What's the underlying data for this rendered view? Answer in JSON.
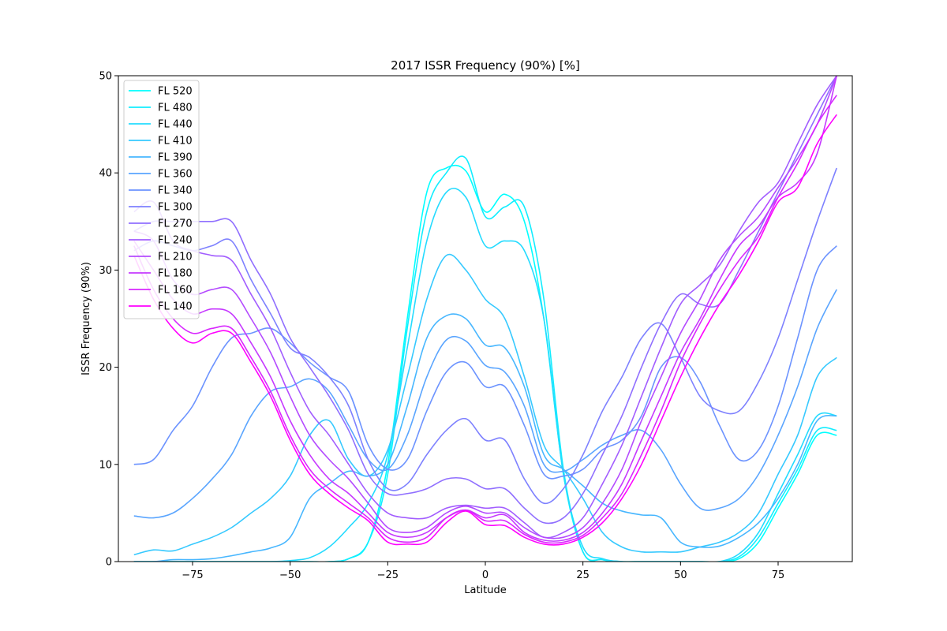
{
  "chart_data": {
    "type": "line",
    "title": "2017 ISSR Frequency (90%) [%]",
    "xlabel": "Latitude",
    "ylabel": "ISSR Frequency (90%)",
    "xlim": [
      -90,
      90
    ],
    "ylim": [
      0,
      50
    ],
    "xticks": [
      -75,
      -50,
      -25,
      0,
      25,
      50,
      75
    ],
    "xtick_labels": [
      "−75",
      "−50",
      "−25",
      "0",
      "25",
      "50",
      "75"
    ],
    "yticks": [
      0,
      10,
      20,
      30,
      40,
      50
    ],
    "ytick_labels": [
      "0",
      "10",
      "20",
      "30",
      "40",
      "50"
    ],
    "grid": false,
    "legend_position": "upper-left",
    "x": [
      -90,
      -85,
      -80,
      -75,
      -70,
      -65,
      -60,
      -55,
      -50,
      -45,
      -40,
      -35,
      -30,
      -25,
      -20,
      -15,
      -10,
      -5,
      0,
      5,
      10,
      15,
      20,
      25,
      30,
      35,
      40,
      45,
      50,
      55,
      60,
      65,
      70,
      75,
      80,
      85,
      90
    ],
    "series": [
      {
        "name": "FL 520",
        "color": "#00ffff",
        "values": [
          0,
          0,
          0,
          0,
          0,
          0,
          0,
          0,
          0,
          0,
          0,
          0.3,
          2,
          10,
          25,
          38,
          40.5,
          40.2,
          36,
          37.8,
          35,
          25,
          9,
          1,
          0.2,
          0,
          0,
          0,
          0,
          0,
          0,
          0.3,
          2,
          5.5,
          9,
          13,
          13
        ]
      },
      {
        "name": "FL 480",
        "color": "#12edff",
        "values": [
          0,
          0,
          0,
          0,
          0,
          0,
          0,
          0,
          0,
          0,
          0,
          0.3,
          2,
          9,
          24,
          36,
          40,
          41.5,
          35.5,
          36.5,
          36.5,
          27,
          9.5,
          1,
          0.2,
          0,
          0,
          0,
          0,
          0,
          0,
          0.5,
          2.5,
          6,
          9.5,
          13.5,
          13.5
        ]
      },
      {
        "name": "FL 440",
        "color": "#24dbff",
        "values": [
          0,
          0,
          0,
          0,
          0,
          0,
          0,
          0,
          0.1,
          0.4,
          1.5,
          3.5,
          6,
          11,
          22,
          33,
          38,
          37.5,
          32.5,
          33,
          32,
          25,
          9,
          1.5,
          0.3,
          0,
          0,
          0,
          0,
          0,
          0,
          0.8,
          3,
          7,
          11,
          15,
          15
        ]
      },
      {
        "name": "FL 410",
        "color": "#36c9ff",
        "values": [
          0.7,
          1.2,
          1.1,
          1.8,
          2.5,
          3.5,
          5,
          6.5,
          8.8,
          13,
          14.5,
          10.5,
          8.8,
          11.5,
          19,
          27,
          31.5,
          30,
          27,
          25,
          19,
          12,
          9.5,
          6.5,
          3,
          1.5,
          1,
          1,
          1,
          1.5,
          2,
          3,
          5,
          9,
          13,
          19,
          21
        ]
      },
      {
        "name": "FL 390",
        "color": "#48b7ff",
        "values": [
          0,
          0,
          0.2,
          0.2,
          0.3,
          0.6,
          1,
          1.4,
          2.5,
          6.5,
          8,
          9.3,
          8.8,
          10,
          16,
          23,
          25.3,
          25,
          22.3,
          22,
          18,
          11,
          9.5,
          7.8,
          6,
          5.2,
          4.8,
          4.5,
          2,
          1.5,
          1.6,
          2.5,
          4,
          6.5,
          10,
          14.5,
          15
        ]
      },
      {
        "name": "FL 360",
        "color": "#5aa5ff",
        "values": [
          4.7,
          4.5,
          5,
          6.5,
          8.5,
          11,
          15,
          17.5,
          18,
          18.8,
          17.5,
          14,
          10.5,
          9.5,
          13,
          19,
          22.8,
          22.7,
          20.2,
          19.5,
          16,
          10,
          9.3,
          10.5,
          12,
          13,
          13.5,
          11.5,
          8,
          5.5,
          5.5,
          6.5,
          9,
          13,
          18,
          24,
          28
        ]
      },
      {
        "name": "FL 340",
        "color": "#6c93ff",
        "values": [
          10,
          10.5,
          13.5,
          16,
          20,
          23,
          23.5,
          24,
          22.5,
          20.5,
          19,
          17.5,
          12,
          9.5,
          10.5,
          15.5,
          19.5,
          20.5,
          18,
          18,
          14,
          9,
          8.8,
          9.5,
          11.5,
          12.5,
          15,
          20,
          21,
          18.5,
          14,
          10.5,
          11.5,
          16,
          23,
          30,
          32.5
        ]
      },
      {
        "name": "FL 300",
        "color": "#7e81ff",
        "values": [
          32,
          33,
          32.5,
          32,
          32.5,
          33,
          29,
          25.5,
          22,
          21,
          19,
          16,
          10.5,
          7.5,
          8,
          11,
          13.5,
          14.7,
          12.5,
          12.5,
          8.5,
          6,
          7.5,
          11,
          15.5,
          19,
          23,
          24.5,
          21,
          17,
          15.5,
          15.5,
          18.5,
          23,
          29,
          35,
          40.5
        ]
      },
      {
        "name": "FL 270",
        "color": "#906fff",
        "values": [
          34,
          35,
          35,
          35,
          35,
          35,
          31,
          27.5,
          23,
          20,
          17,
          13.5,
          9,
          7,
          7,
          7.5,
          8.5,
          8.5,
          7.5,
          7.5,
          5.5,
          4,
          4.5,
          7,
          11,
          15,
          20,
          24.5,
          27.5,
          26.5,
          26.5,
          30,
          34,
          38,
          42,
          46,
          50
        ]
      },
      {
        "name": "FL 240",
        "color": "#a25dff",
        "values": [
          36,
          37,
          33,
          32,
          31.5,
          31,
          27.5,
          24,
          19.5,
          15.5,
          13,
          10,
          7,
          5,
          4.5,
          4.5,
          5.5,
          5.8,
          5.5,
          5.5,
          4,
          2.5,
          3,
          4.5,
          8,
          12,
          17,
          22,
          26.5,
          28.5,
          30.5,
          34,
          37,
          39,
          43,
          47,
          50
        ]
      },
      {
        "name": "FL 210",
        "color": "#b44bff",
        "values": [
          34,
          33,
          29,
          27.5,
          28,
          28,
          25,
          21.5,
          17,
          13,
          10.5,
          8.5,
          6,
          3.5,
          3,
          3.5,
          5,
          5.7,
          5,
          5,
          3.5,
          2.5,
          2.5,
          3.5,
          6,
          9.5,
          14.5,
          19,
          23.5,
          27,
          31,
          33.5,
          35.5,
          38.5,
          41.5,
          45,
          50
        ]
      },
      {
        "name": "FL 180",
        "color": "#c639ff",
        "values": [
          33,
          30,
          27,
          25.5,
          26,
          25.5,
          22.5,
          19,
          14.5,
          11,
          8.5,
          7,
          5,
          3,
          2.5,
          3,
          4.5,
          5.3,
          4.5,
          4.8,
          3,
          2.2,
          2.2,
          3,
          5,
          8,
          12.5,
          17,
          21.5,
          25,
          29,
          32.5,
          34.5,
          37.5,
          39,
          42,
          50
        ]
      },
      {
        "name": "FL 160",
        "color": "#d827ff",
        "values": [
          32.5,
          28,
          25,
          23.5,
          24,
          24,
          21,
          17.5,
          13,
          9.5,
          7.5,
          6,
          4.5,
          2.5,
          2,
          2.5,
          4.5,
          5.3,
          4.2,
          4.2,
          2.8,
          2,
          2,
          2.7,
          4.5,
          7,
          11,
          15.5,
          20.5,
          24.5,
          28,
          31,
          33.5,
          37.5,
          41,
          45,
          48
        ]
      },
      {
        "name": "FL 140",
        "color": "#ff00ff",
        "values": [
          31.5,
          27,
          24,
          22.5,
          23.5,
          23.5,
          20.5,
          17,
          12.5,
          9,
          7,
          5.5,
          4.2,
          2,
          1.8,
          2,
          4,
          5.2,
          3.8,
          3.7,
          2.5,
          1.8,
          1.8,
          2.5,
          4,
          6.5,
          10,
          14.5,
          19,
          23,
          26.5,
          29.5,
          33,
          37,
          38.5,
          43,
          46
        ]
      }
    ]
  }
}
